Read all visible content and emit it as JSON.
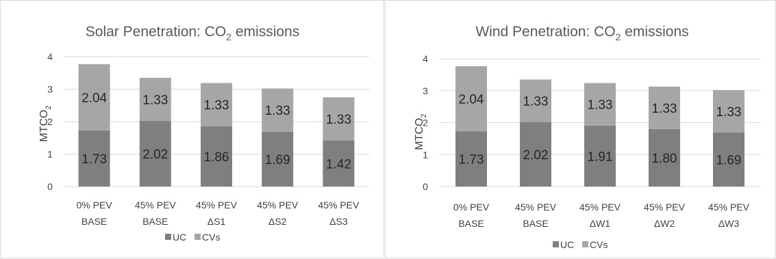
{
  "colors": {
    "UC": "#7f7f7f",
    "CVs": "#a6a6a6"
  },
  "chart_data": [
    {
      "type": "bar",
      "stacked": true,
      "title": "Solar Penetration: CO2 emissions",
      "title_parts": {
        "before": "Solar Penetration: CO",
        "sub": "2",
        "after": " emissions"
      },
      "ylabel": "MTCO2",
      "ylabel_parts": {
        "before": "MTCO",
        "sub": "2"
      },
      "ylim": [
        0,
        4
      ],
      "yticks": [
        "0",
        "1",
        "2",
        "3",
        "4"
      ],
      "categories": [
        [
          "0% PEV",
          "BASE"
        ],
        [
          "45% PEV",
          "BASE"
        ],
        [
          "45% PEV",
          "ΔS1"
        ],
        [
          "45% PEV",
          "ΔS2"
        ],
        [
          "45% PEV",
          "ΔS3"
        ]
      ],
      "series": [
        {
          "name": "UC",
          "values": [
            1.73,
            2.02,
            1.86,
            1.69,
            1.42
          ],
          "labels": [
            "1.73",
            "2.02",
            "1.86",
            "1.69",
            "1.42"
          ]
        },
        {
          "name": "CVs",
          "values": [
            2.04,
            1.33,
            1.33,
            1.33,
            1.33
          ],
          "labels": [
            "2.04",
            "1.33",
            "1.33",
            "1.33",
            "1.33"
          ]
        }
      ],
      "legend": [
        "UC",
        "CVs"
      ],
      "legend_position": "bottom",
      "grid": true
    },
    {
      "type": "bar",
      "stacked": true,
      "title": "Wind Penetration: CO2 emissions",
      "title_parts": {
        "before": "Wind Penetration: CO",
        "sub": "2",
        "after": " emissions"
      },
      "ylabel": "MTCO2",
      "ylabel_parts": {
        "before": "MTCO",
        "sub": "2"
      },
      "ylim": [
        0,
        4
      ],
      "yticks": [
        "0",
        "1",
        "2",
        "3",
        "4"
      ],
      "categories": [
        [
          "0% PEV",
          "BASE"
        ],
        [
          "45% PEV",
          "BASE"
        ],
        [
          "45% PEV",
          "ΔW1"
        ],
        [
          "45% PEV",
          "ΔW2"
        ],
        [
          "45% PEV",
          "ΔW3"
        ]
      ],
      "series": [
        {
          "name": "UC",
          "values": [
            1.73,
            2.02,
            1.91,
            1.8,
            1.69
          ],
          "labels": [
            "1.73",
            "2.02",
            "1.91",
            "1.80",
            "1.69"
          ]
        },
        {
          "name": "CVs",
          "values": [
            2.04,
            1.33,
            1.33,
            1.33,
            1.33
          ],
          "labels": [
            "2.04",
            "1.33",
            "1.33",
            "1.33",
            "1.33"
          ]
        }
      ],
      "legend": [
        "UC",
        "CVs"
      ],
      "legend_position": "bottom",
      "grid": true
    }
  ]
}
